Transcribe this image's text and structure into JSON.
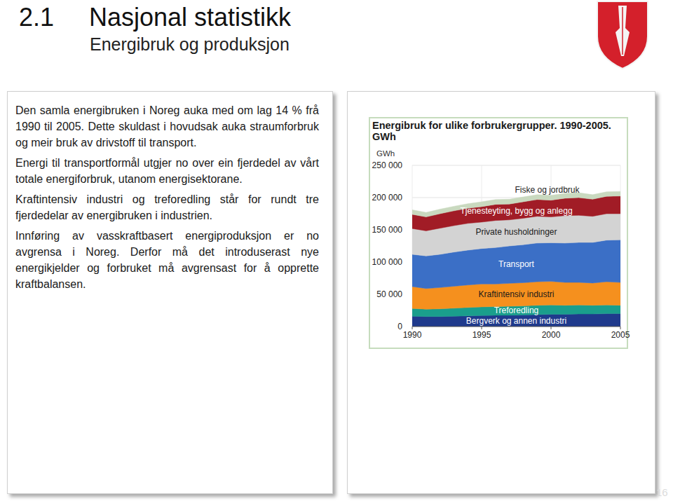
{
  "slide": {
    "number": "2.1",
    "title": "Nasjonal statistikk",
    "subtitle": "Energibruk og produksjon",
    "paragraphs": [
      "Den samla energibruken i Noreg auka med om lag 14 % frå 1990 til 2005. Dette skuldast i hovudsak auka straumforbruk og meir bruk av drivstoff til transport.",
      "Energi til transportformål utgjer no over ein fjerdedel av vårt totale energiforbruk, utanom energi­sektorane.",
      "Kraftintensiv industri og treforedling står for rundt tre fjerdedelar av energibruken i industrien.",
      "Innføring av vasskraftbasert energiproduksjon er no avgrensa i Noreg. Derfor må det introduserast nye energikjelder og forbruket må avgrensast for å opprette kraftbalansen."
    ],
    "page_number": "16"
  },
  "chart_data": {
    "type": "area",
    "stacked": true,
    "title": "Energibruk for ulike forbrukergrupper. 1990-2005. GWh",
    "ylabel": "GWh",
    "x": [
      1990,
      1991,
      1992,
      1993,
      1994,
      1995,
      1996,
      1997,
      1998,
      1999,
      2000,
      2001,
      2002,
      2003,
      2004,
      2005
    ],
    "xlim": [
      1990,
      2005
    ],
    "xticks": [
      1990,
      1995,
      2000,
      2005
    ],
    "ylim": [
      0,
      250000
    ],
    "yticks": [
      0,
      {
        "value": 50000,
        "label": "50 000"
      },
      {
        "value": 100000,
        "label": "100 000"
      },
      {
        "value": 150000,
        "label": "150 000"
      },
      {
        "value": 200000,
        "label": "200 000"
      },
      {
        "value": 250000,
        "label": "250 000"
      }
    ],
    "grid": true,
    "series": [
      {
        "name": "Bergverk og annen industri",
        "color": "#1f3a8c",
        "values": [
          16000,
          15500,
          15500,
          16000,
          16500,
          17000,
          17500,
          17500,
          18000,
          18500,
          19000,
          19000,
          19500,
          19500,
          20000,
          20000
        ]
      },
      {
        "name": "Treforedling",
        "color": "#1a9e8c",
        "values": [
          12000,
          11500,
          12000,
          12500,
          13000,
          13500,
          13500,
          14000,
          14000,
          14500,
          14500,
          14000,
          14000,
          13500,
          13500,
          13000
        ]
      },
      {
        "name": "Kraftintensiv industri",
        "color": "#f5901e",
        "values": [
          34000,
          32000,
          33000,
          34000,
          35000,
          35500,
          35000,
          35500,
          36000,
          36500,
          36500,
          35500,
          35000,
          34500,
          36000,
          35500
        ]
      },
      {
        "name": "Transport",
        "color": "#3b6fc6",
        "values": [
          50000,
          50500,
          51500,
          53000,
          54000,
          55000,
          56500,
          58000,
          59000,
          60000,
          60000,
          61000,
          62000,
          63000,
          64500,
          66000
        ]
      },
      {
        "name": "Private husholdninger",
        "color": "#d3d3d3",
        "values": [
          40000,
          39000,
          40500,
          41000,
          41500,
          41000,
          42000,
          40500,
          41000,
          41500,
          40000,
          42500,
          42000,
          40500,
          41000,
          40500
        ]
      },
      {
        "name": "Tjenesteyting, bygg og anlegg",
        "color": "#a11c26",
        "values": [
          22000,
          21500,
          22500,
          23000,
          23500,
          24000,
          25000,
          24500,
          25500,
          26000,
          26000,
          27000,
          27500,
          26500,
          27000,
          27500
        ]
      },
      {
        "name": "Fiske og jordbruk",
        "color": "#c9d9bf",
        "values": [
          7000,
          7000,
          7000,
          7000,
          7000,
          7500,
          7500,
          7500,
          7500,
          7500,
          7500,
          7500,
          7500,
          7000,
          7000,
          7000
        ]
      }
    ]
  }
}
